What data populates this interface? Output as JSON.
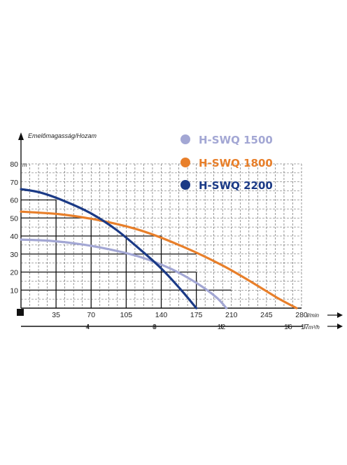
{
  "chart_data": {
    "type": "line",
    "ylabel": "Emelőmagasság/Hozam",
    "yunit": "m",
    "xunit_primary": "l/min",
    "xunit_secondary": "m³/h",
    "ylim": [
      0,
      80
    ],
    "xlim": [
      0,
      280
    ],
    "y_ticks": [
      "10",
      "20",
      "30",
      "40",
      "50",
      "60",
      "70",
      "80"
    ],
    "x_ticks": [
      "35",
      "70",
      "105",
      "140",
      "175",
      "210",
      "245",
      "280"
    ],
    "x2_ticks": [
      "4",
      "8",
      "12",
      "16",
      "17"
    ],
    "grid": true,
    "legend_position": "top-right",
    "series": [
      {
        "name": "H-SWQ 1500",
        "color": "#a3a7d4",
        "x": [
          0,
          30,
          60,
          90,
          120,
          150,
          175,
          195,
          205
        ],
        "y": [
          38,
          37.3,
          35.4,
          32.4,
          28.2,
          21.7,
          14,
          6,
          0
        ]
      },
      {
        "name": "H-SWQ 1800",
        "color": "#e87f2a",
        "x": [
          0,
          40,
          80,
          120,
          160,
          200,
          230,
          255,
          275
        ],
        "y": [
          53.5,
          52,
          48.5,
          43,
          34.5,
          24,
          14.5,
          6,
          0
        ]
      },
      {
        "name": "H-SWQ 2200",
        "color": "#1b3a86",
        "x": [
          0,
          20,
          45,
          70,
          95,
          120,
          140,
          160,
          175
        ],
        "y": [
          66,
          64,
          59,
          52.5,
          43.5,
          32,
          22,
          10,
          0
        ]
      }
    ]
  }
}
